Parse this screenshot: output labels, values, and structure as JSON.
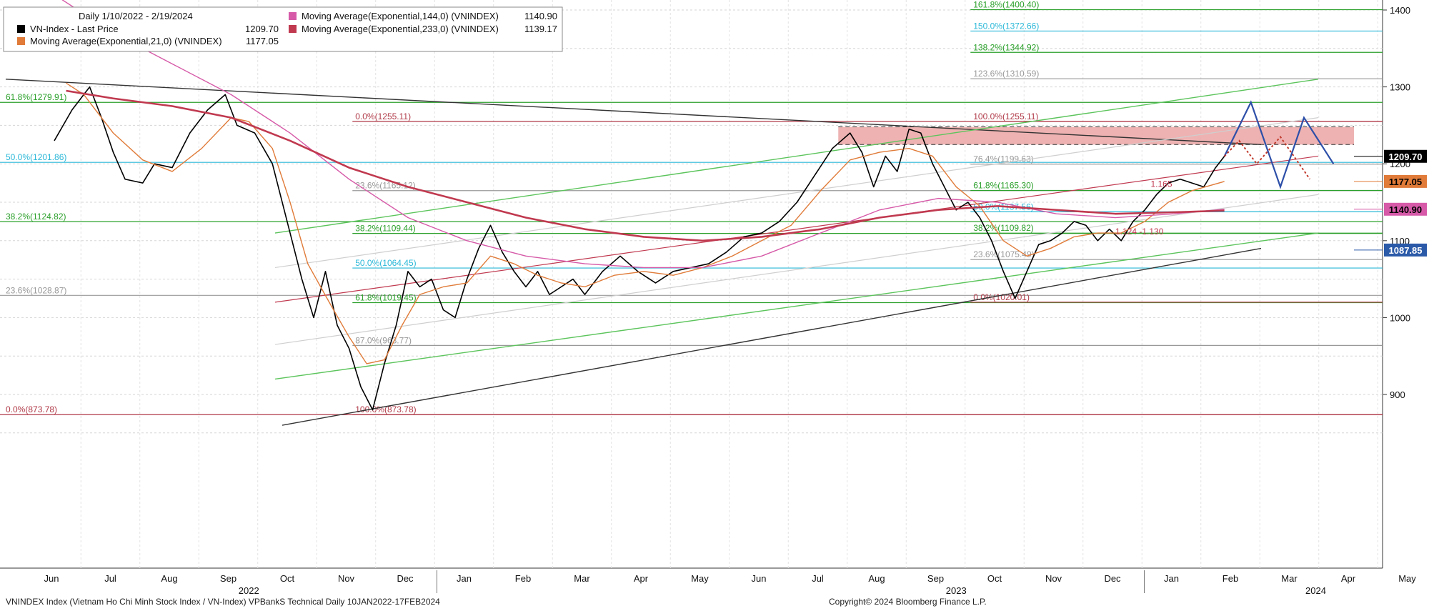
{
  "header": {
    "date_range": "Daily 1/10/2022 - 2/19/2024",
    "legend": [
      {
        "label": "VN-Index - Last Price",
        "value": "1209.70",
        "color": "#000000"
      },
      {
        "label": "Moving Average(Exponential,21,0) (VNINDEX)",
        "value": "1177.05",
        "color": "#e07b39"
      },
      {
        "label": "Moving Average(Exponential,144,0) (VNINDEX)",
        "value": "1140.90",
        "color": "#d65aa8"
      },
      {
        "label": "Moving Average(Exponential,233,0) (VNINDEX)",
        "value": "1139.17",
        "color": "#c0394f"
      }
    ]
  },
  "footer": {
    "left": "VNINDEX Index (Vietnam Ho Chi Minh Stock Index / VN-Index) VPBankS Technical  Daily 10JAN2022-17FEB2024",
    "right": "Copyright© 2024 Bloomberg Finance L.P."
  },
  "chart_data": {
    "type": "line",
    "ylim": [
      840,
      1420
    ],
    "y_ticks": [
      900,
      1000,
      1100,
      1200,
      1300,
      1400
    ],
    "x_months": [
      "Jun",
      "Jul",
      "Aug",
      "Sep",
      "Oct",
      "Nov",
      "Dec",
      "Jan",
      "Feb",
      "Mar",
      "Apr",
      "May",
      "Jun",
      "Jul",
      "Aug",
      "Sep",
      "Oct",
      "Nov",
      "Dec",
      "Jan",
      "Feb",
      "Mar",
      "Apr",
      "May"
    ],
    "x_years": [
      "2022",
      "2023",
      "2024"
    ],
    "price_tags": [
      {
        "value": 1209.7,
        "label": "1209.70",
        "bg": "#000000",
        "fg": "#ffffff"
      },
      {
        "value": 1177.05,
        "label": "1177.05",
        "bg": "#e07b39",
        "fg": "#000000"
      },
      {
        "value": 1140.9,
        "label": "1140.90",
        "bg": "#d65aa8",
        "fg": "#000000"
      },
      {
        "value": 1087.85,
        "label": "1087.85",
        "bg": "#2b5aa8",
        "fg": "#ffffff"
      }
    ],
    "series": [
      {
        "name": "VN-Index - Last Price",
        "color": "#000000",
        "points": [
          [
            0,
            1230
          ],
          [
            0.3,
            1270
          ],
          [
            0.6,
            1300
          ],
          [
            0.8,
            1260
          ],
          [
            1.0,
            1215
          ],
          [
            1.2,
            1180
          ],
          [
            1.5,
            1175
          ],
          [
            1.7,
            1200
          ],
          [
            2.0,
            1195
          ],
          [
            2.3,
            1240
          ],
          [
            2.6,
            1270
          ],
          [
            2.9,
            1290
          ],
          [
            3.1,
            1250
          ],
          [
            3.4,
            1240
          ],
          [
            3.7,
            1200
          ],
          [
            4.0,
            1110
          ],
          [
            4.2,
            1050
          ],
          [
            4.4,
            1000
          ],
          [
            4.6,
            1060
          ],
          [
            4.8,
            990
          ],
          [
            5.0,
            960
          ],
          [
            5.2,
            910
          ],
          [
            5.4,
            880
          ],
          [
            5.6,
            940
          ],
          [
            5.8,
            990
          ],
          [
            6.0,
            1060
          ],
          [
            6.2,
            1040
          ],
          [
            6.4,
            1050
          ],
          [
            6.6,
            1010
          ],
          [
            6.8,
            1000
          ],
          [
            7.0,
            1050
          ],
          [
            7.2,
            1090
          ],
          [
            7.4,
            1120
          ],
          [
            7.6,
            1085
          ],
          [
            7.8,
            1060
          ],
          [
            8.0,
            1040
          ],
          [
            8.2,
            1060
          ],
          [
            8.4,
            1030
          ],
          [
            8.6,
            1040
          ],
          [
            8.8,
            1050
          ],
          [
            9.0,
            1030
          ],
          [
            9.3,
            1060
          ],
          [
            9.6,
            1080
          ],
          [
            9.9,
            1060
          ],
          [
            10.2,
            1045
          ],
          [
            10.5,
            1060
          ],
          [
            10.8,
            1065
          ],
          [
            11.1,
            1070
          ],
          [
            11.4,
            1085
          ],
          [
            11.7,
            1105
          ],
          [
            12.0,
            1110
          ],
          [
            12.3,
            1125
          ],
          [
            12.6,
            1150
          ],
          [
            12.9,
            1185
          ],
          [
            13.2,
            1220
          ],
          [
            13.5,
            1240
          ],
          [
            13.7,
            1215
          ],
          [
            13.9,
            1170
          ],
          [
            14.1,
            1210
          ],
          [
            14.3,
            1190
          ],
          [
            14.5,
            1245
          ],
          [
            14.7,
            1240
          ],
          [
            14.9,
            1200
          ],
          [
            15.1,
            1170
          ],
          [
            15.3,
            1140
          ],
          [
            15.5,
            1150
          ],
          [
            15.7,
            1130
          ],
          [
            15.9,
            1100
          ],
          [
            16.1,
            1060
          ],
          [
            16.3,
            1025
          ],
          [
            16.5,
            1060
          ],
          [
            16.7,
            1095
          ],
          [
            16.9,
            1100
          ],
          [
            17.1,
            1110
          ],
          [
            17.3,
            1125
          ],
          [
            17.5,
            1120
          ],
          [
            17.7,
            1100
          ],
          [
            17.9,
            1115
          ],
          [
            18.1,
            1100
          ],
          [
            18.3,
            1125
          ],
          [
            18.5,
            1140
          ],
          [
            18.7,
            1160
          ],
          [
            18.9,
            1175
          ],
          [
            19.1,
            1180
          ],
          [
            19.3,
            1175
          ],
          [
            19.5,
            1170
          ],
          [
            19.7,
            1195
          ],
          [
            19.85,
            1209.7
          ]
        ]
      },
      {
        "name": "Moving Average(Exponential,21,0) (VNINDEX)",
        "color": "#e07b39",
        "points": [
          [
            0.2,
            1305
          ],
          [
            0.5,
            1290
          ],
          [
            1.0,
            1240
          ],
          [
            1.5,
            1205
          ],
          [
            2.0,
            1190
          ],
          [
            2.5,
            1220
          ],
          [
            3.0,
            1260
          ],
          [
            3.3,
            1255
          ],
          [
            3.7,
            1220
          ],
          [
            4.0,
            1150
          ],
          [
            4.3,
            1070
          ],
          [
            4.7,
            1015
          ],
          [
            5.0,
            975
          ],
          [
            5.3,
            940
          ],
          [
            5.6,
            945
          ],
          [
            5.9,
            990
          ],
          [
            6.2,
            1030
          ],
          [
            6.6,
            1040
          ],
          [
            7.0,
            1045
          ],
          [
            7.4,
            1080
          ],
          [
            7.8,
            1070
          ],
          [
            8.2,
            1055
          ],
          [
            8.6,
            1045
          ],
          [
            9.0,
            1040
          ],
          [
            9.5,
            1055
          ],
          [
            10.0,
            1060
          ],
          [
            10.5,
            1055
          ],
          [
            11.0,
            1065
          ],
          [
            11.5,
            1080
          ],
          [
            12.0,
            1100
          ],
          [
            12.5,
            1120
          ],
          [
            13.0,
            1165
          ],
          [
            13.5,
            1205
          ],
          [
            14.0,
            1215
          ],
          [
            14.5,
            1220
          ],
          [
            14.9,
            1210
          ],
          [
            15.3,
            1170
          ],
          [
            15.7,
            1145
          ],
          [
            16.1,
            1100
          ],
          [
            16.5,
            1080
          ],
          [
            16.9,
            1090
          ],
          [
            17.3,
            1105
          ],
          [
            17.7,
            1110
          ],
          [
            18.1,
            1110
          ],
          [
            18.5,
            1125
          ],
          [
            18.9,
            1150
          ],
          [
            19.3,
            1165
          ],
          [
            19.85,
            1177.05
          ]
        ]
      },
      {
        "name": "Moving Average(Exponential,144,0) (VNINDEX)",
        "color": "#d65aa8",
        "points": [
          [
            0,
            1420
          ],
          [
            1.0,
            1370
          ],
          [
            2.0,
            1330
          ],
          [
            3.0,
            1290
          ],
          [
            4.0,
            1240
          ],
          [
            5.0,
            1180
          ],
          [
            6.0,
            1130
          ],
          [
            7.0,
            1100
          ],
          [
            8.0,
            1080
          ],
          [
            9.0,
            1070
          ],
          [
            10.0,
            1065
          ],
          [
            11.0,
            1065
          ],
          [
            12.0,
            1080
          ],
          [
            13.0,
            1110
          ],
          [
            14.0,
            1140
          ],
          [
            15.0,
            1155
          ],
          [
            16.0,
            1150
          ],
          [
            17.0,
            1135
          ],
          [
            18.0,
            1130
          ],
          [
            19.0,
            1135
          ],
          [
            19.85,
            1140.9
          ]
        ]
      },
      {
        "name": "Moving Average(Exponential,233,0) (VNINDEX)",
        "color": "#c0394f",
        "points": [
          [
            0.2,
            1295
          ],
          [
            1.0,
            1285
          ],
          [
            2.0,
            1275
          ],
          [
            3.0,
            1260
          ],
          [
            4.0,
            1230
          ],
          [
            5.0,
            1195
          ],
          [
            6.0,
            1170
          ],
          [
            7.0,
            1150
          ],
          [
            8.0,
            1130
          ],
          [
            9.0,
            1115
          ],
          [
            10.0,
            1105
          ],
          [
            11.0,
            1100
          ],
          [
            12.0,
            1105
          ],
          [
            13.0,
            1115
          ],
          [
            14.0,
            1130
          ],
          [
            15.0,
            1140
          ],
          [
            16.0,
            1145
          ],
          [
            17.0,
            1140
          ],
          [
            18.0,
            1135
          ],
          [
            19.0,
            1137
          ],
          [
            19.85,
            1139.17
          ]
        ]
      }
    ],
    "projection_solid": [
      [
        19.85,
        1209.7
      ],
      [
        20.3,
        1280
      ],
      [
        20.8,
        1170
      ],
      [
        21.2,
        1260
      ],
      [
        21.7,
        1200
      ]
    ],
    "projection_dotted": [
      [
        19.85,
        1209.7
      ],
      [
        20.1,
        1230
      ],
      [
        20.4,
        1200
      ],
      [
        20.8,
        1235
      ],
      [
        21.3,
        1180
      ]
    ],
    "fib_left": [
      {
        "label": "61.8%(1279.91)",
        "value": 1279.91,
        "color": "#2ba02b"
      },
      {
        "label": "50.0%(1201.86)",
        "value": 1201.86,
        "color": "#2bb8d8"
      },
      {
        "label": "38.2%(1124.82)",
        "value": 1124.82,
        "color": "#2ba02b"
      },
      {
        "label": "23.6%(1028.87)",
        "value": 1028.87,
        "color": "#999999"
      },
      {
        "label": "0.0%(873.78)",
        "value": 873.78,
        "color": "#b03a48"
      }
    ],
    "fib_mid": [
      {
        "label": "0.0%(1255.11)",
        "value": 1255.11,
        "color": "#b03a48"
      },
      {
        "label": "23.6%(1165.12)",
        "value": 1165.12,
        "color": "#999999"
      },
      {
        "label": "38.2%(1109.44)",
        "value": 1109.44,
        "color": "#2ba02b"
      },
      {
        "label": "50.0%(1064.45)",
        "value": 1064.45,
        "color": "#2bb8d8"
      },
      {
        "label": "61.8%(1019.45)",
        "value": 1019.45,
        "color": "#2ba02b"
      },
      {
        "label": "87.0%(963.77)",
        "value": 963.77,
        "color": "#999999"
      },
      {
        "label": "100.0%(873.78)",
        "value": 873.78,
        "color": "#b03a48"
      }
    ],
    "fib_right": [
      {
        "label": "161.8%(1400.40)",
        "value": 1400.4,
        "color": "#2ba02b"
      },
      {
        "label": "150.0%(1372.66)",
        "value": 1372.66,
        "color": "#2bb8d8"
      },
      {
        "label": "138.2%(1344.92)",
        "value": 1344.92,
        "color": "#2ba02b"
      },
      {
        "label": "123.6%(1310.59)",
        "value": 1310.59,
        "color": "#999999"
      },
      {
        "label": "100.0%(1255.11)",
        "value": 1255.11,
        "color": "#b03a48"
      },
      {
        "label": "76.4%(1199.63)",
        "value": 1199.63,
        "color": "#999999"
      },
      {
        "label": "61.8%(1165.30)",
        "value": 1165.3,
        "color": "#2ba02b"
      },
      {
        "label": "50.0%(1137.56)",
        "value": 1137.56,
        "color": "#2bb8d8"
      },
      {
        "label": "38.2%(1109.82)",
        "value": 1109.82,
        "color": "#2ba02b"
      },
      {
        "label": "23.6%(1075.49)",
        "value": 1075.49,
        "color": "#999999"
      },
      {
        "label": "0.0%(1020.01)",
        "value": 1020.01,
        "color": "#b03a48"
      }
    ],
    "resistance_zone": [
      1225,
      1248
    ],
    "annotations": [
      "1.165",
      "1.124 -1.130"
    ]
  }
}
